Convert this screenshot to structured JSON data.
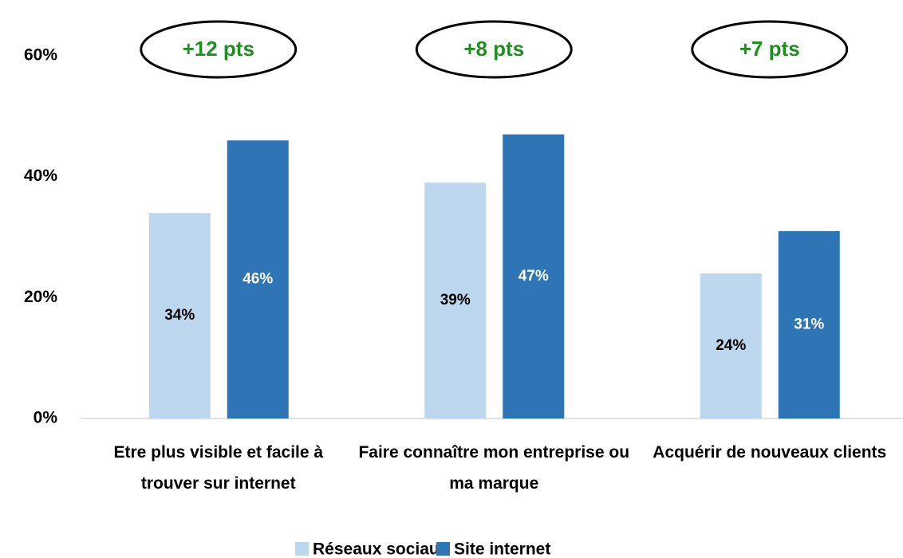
{
  "chart_data": {
    "type": "bar",
    "categories": [
      "Etre plus visible et facile à trouver sur internet",
      "Faire connaître mon entreprise ou ma marque",
      "Acquérir de nouveaux clients"
    ],
    "series": [
      {
        "name": "Réseaux sociaux",
        "color": "#bdd7ee",
        "values": [
          34,
          39,
          24
        ],
        "value_labels": [
          "34%",
          "39%",
          "24%"
        ]
      },
      {
        "name": "Site internet",
        "color": "#2e75b6",
        "values": [
          46,
          47,
          31
        ],
        "value_labels": [
          "46%",
          "47%",
          "31%"
        ]
      }
    ],
    "annotations": [
      "+12 pts",
      "+8 pts",
      "+7 pts"
    ],
    "ylim": [
      0,
      60
    ],
    "yticks": [
      {
        "value": 0,
        "label": "0%"
      },
      {
        "value": 20,
        "label": "20%"
      },
      {
        "value": 40,
        "label": "40%"
      },
      {
        "value": 60,
        "label": "60%"
      }
    ],
    "legend": "bottom"
  }
}
